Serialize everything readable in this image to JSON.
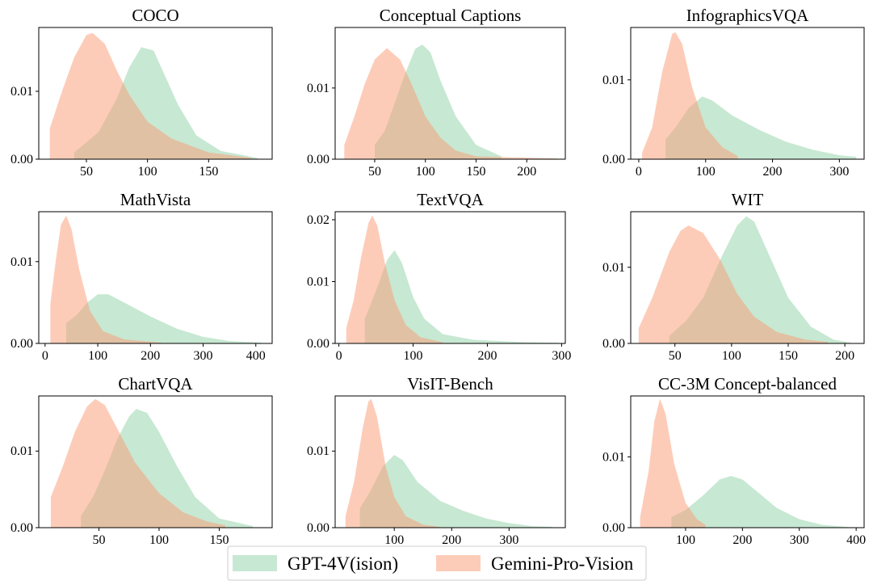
{
  "chart_data": [
    {
      "type": "area",
      "title": "COCO",
      "xlim": [
        11,
        202
      ],
      "xticks": [
        50,
        100,
        150
      ],
      "ylim": [
        0,
        0.0194
      ],
      "yticks": [
        {
          "value": 0,
          "label": "0.00"
        },
        {
          "value": 0.01,
          "label": "0.01"
        }
      ],
      "series": [
        {
          "color": "#8fd1a6",
          "x": [
            40,
            60,
            75,
            85,
            95,
            105,
            115,
            125,
            140,
            160,
            190
          ],
          "values": [
            0.001,
            0.004,
            0.009,
            0.0135,
            0.0165,
            0.016,
            0.012,
            0.008,
            0.0035,
            0.0012,
            0.0002
          ]
        },
        {
          "color": "#fc9a74",
          "x": [
            20,
            30,
            40,
            50,
            55,
            65,
            75,
            85,
            100,
            120,
            150,
            185
          ],
          "values": [
            0.0045,
            0.01,
            0.015,
            0.0183,
            0.0186,
            0.017,
            0.013,
            0.0095,
            0.0055,
            0.003,
            0.001,
            0.0002
          ]
        }
      ]
    },
    {
      "type": "area",
      "title": "Conceptual Captions",
      "xlim": [
        11,
        238
      ],
      "xticks": [
        50,
        100,
        150,
        200
      ],
      "ylim": [
        0,
        0.0185
      ],
      "yticks": [
        {
          "value": 0,
          "label": "0.00"
        },
        {
          "value": 0.01,
          "label": "0.01"
        }
      ],
      "series": [
        {
          "color": "#8fd1a6",
          "x": [
            50,
            60,
            70,
            80,
            90,
            97,
            105,
            115,
            130,
            150,
            175
          ],
          "values": [
            0.002,
            0.004,
            0.008,
            0.012,
            0.0155,
            0.0161,
            0.015,
            0.011,
            0.006,
            0.002,
            0.0004
          ]
        },
        {
          "color": "#fc9a74",
          "x": [
            20,
            30,
            40,
            50,
            62,
            75,
            85,
            100,
            115,
            130,
            150,
            230
          ],
          "values": [
            0.002,
            0.006,
            0.0105,
            0.014,
            0.0156,
            0.014,
            0.011,
            0.006,
            0.003,
            0.0012,
            0.0004,
            0.0001
          ]
        }
      ]
    },
    {
      "type": "area",
      "title": "InfographicsVQA",
      "xlim": [
        -12,
        337
      ],
      "xticks": [
        0,
        100,
        200,
        300
      ],
      "ylim": [
        0,
        0.0166
      ],
      "yticks": [
        {
          "value": 0,
          "label": "0.00"
        },
        {
          "value": 0.01,
          "label": "0.01"
        }
      ],
      "series": [
        {
          "color": "#8fd1a6",
          "x": [
            40,
            55,
            75,
            95,
            110,
            140,
            180,
            220,
            260,
            300,
            325
          ],
          "values": [
            0.0025,
            0.004,
            0.0065,
            0.0079,
            0.0074,
            0.0055,
            0.0037,
            0.0022,
            0.0012,
            0.0005,
            0.0003
          ]
        },
        {
          "color": "#fc9a74",
          "x": [
            5,
            20,
            35,
            50,
            55,
            65,
            80,
            100,
            125,
            148
          ],
          "values": [
            0.0008,
            0.004,
            0.011,
            0.0158,
            0.016,
            0.0145,
            0.009,
            0.004,
            0.0015,
            0.0004
          ]
        }
      ]
    },
    {
      "type": "area",
      "title": "MathVista",
      "xlim": [
        -12,
        431
      ],
      "xticks": [
        0,
        100,
        200,
        300,
        400
      ],
      "ylim": [
        0,
        0.0161
      ],
      "yticks": [
        {
          "value": 0,
          "label": "0.00"
        },
        {
          "value": 0.01,
          "label": "0.01"
        }
      ],
      "series": [
        {
          "color": "#8fd1a6",
          "x": [
            40,
            60,
            80,
            100,
            120,
            150,
            200,
            250,
            300,
            350,
            410
          ],
          "values": [
            0.0025,
            0.0035,
            0.005,
            0.006,
            0.006,
            0.005,
            0.0033,
            0.0018,
            0.0008,
            0.0003,
            0.0001
          ]
        },
        {
          "color": "#fc9a74",
          "x": [
            10,
            20,
            30,
            40,
            50,
            65,
            85,
            110,
            150,
            220
          ],
          "values": [
            0.0048,
            0.01,
            0.0145,
            0.0156,
            0.014,
            0.009,
            0.004,
            0.0015,
            0.0005,
            0.0001
          ]
        }
      ]
    },
    {
      "type": "area",
      "title": "TextVQA",
      "xlim": [
        -5,
        305
      ],
      "xticks": [
        0,
        100,
        200,
        300
      ],
      "ylim": [
        0,
        0.0213
      ],
      "yticks": [
        {
          "value": 0,
          "label": "0.00"
        },
        {
          "value": 0.01,
          "label": "0.01"
        },
        {
          "value": 0.02,
          "label": "0.02"
        }
      ],
      "series": [
        {
          "color": "#8fd1a6",
          "x": [
            35,
            50,
            65,
            75,
            85,
            100,
            115,
            140,
            180,
            250,
            295
          ],
          "values": [
            0.004,
            0.0085,
            0.0135,
            0.0151,
            0.013,
            0.0075,
            0.004,
            0.0015,
            0.0006,
            0.0002,
            0.0001
          ]
        },
        {
          "color": "#fc9a74",
          "x": [
            10,
            20,
            30,
            40,
            45,
            52,
            62,
            75,
            90,
            110,
            140
          ],
          "values": [
            0.0025,
            0.007,
            0.014,
            0.0195,
            0.0207,
            0.019,
            0.013,
            0.007,
            0.003,
            0.001,
            0.0002
          ]
        }
      ]
    },
    {
      "type": "area",
      "title": "WIT",
      "xlim": [
        11,
        217
      ],
      "xticks": [
        50,
        100,
        150,
        200
      ],
      "ylim": [
        0,
        0.0173
      ],
      "yticks": [
        {
          "value": 0,
          "label": "0.00"
        },
        {
          "value": 0.01,
          "label": "0.01"
        }
      ],
      "series": [
        {
          "color": "#8fd1a6",
          "x": [
            45,
            60,
            75,
            90,
            105,
            113,
            120,
            135,
            150,
            170,
            190,
            205
          ],
          "values": [
            0.001,
            0.003,
            0.006,
            0.011,
            0.0155,
            0.0167,
            0.016,
            0.011,
            0.006,
            0.0022,
            0.0005,
            0.0001
          ]
        },
        {
          "color": "#fc9a74",
          "x": [
            18,
            30,
            45,
            55,
            62,
            75,
            90,
            105,
            120,
            140,
            165,
            185
          ],
          "values": [
            0.002,
            0.006,
            0.012,
            0.0148,
            0.0155,
            0.0145,
            0.011,
            0.0065,
            0.0035,
            0.0015,
            0.0005,
            0.0002
          ]
        }
      ]
    },
    {
      "type": "area",
      "title": "ChartVQA",
      "xlim": [
        0,
        194
      ],
      "xticks": [
        50,
        100,
        150
      ],
      "ylim": [
        0,
        0.0172
      ],
      "yticks": [
        {
          "value": 0,
          "label": "0.00"
        },
        {
          "value": 0.01,
          "label": "0.01"
        }
      ],
      "series": [
        {
          "color": "#8fd1a6",
          "x": [
            35,
            45,
            55,
            65,
            75,
            81,
            90,
            100,
            115,
            130,
            150,
            178
          ],
          "values": [
            0.0015,
            0.004,
            0.0075,
            0.0115,
            0.0145,
            0.0155,
            0.015,
            0.0125,
            0.008,
            0.004,
            0.0012,
            0.0002
          ]
        },
        {
          "color": "#fc9a74",
          "x": [
            10,
            20,
            30,
            40,
            47,
            55,
            65,
            80,
            100,
            120,
            140,
            155
          ],
          "values": [
            0.004,
            0.008,
            0.0125,
            0.0158,
            0.0168,
            0.016,
            0.013,
            0.0085,
            0.0045,
            0.002,
            0.0008,
            0.0003
          ]
        }
      ]
    },
    {
      "type": "area",
      "title": "VisIT-Bench",
      "xlim": [
        -3,
        398
      ],
      "xticks": [
        100,
        200,
        300
      ],
      "ylim": [
        0,
        0.0172
      ],
      "yticks": [
        {
          "value": 0,
          "label": "0.00"
        },
        {
          "value": 0.01,
          "label": "0.01"
        }
      ],
      "series": [
        {
          "color": "#8fd1a6",
          "x": [
            40,
            60,
            80,
            100,
            115,
            140,
            180,
            220,
            260,
            300,
            340,
            375
          ],
          "values": [
            0.0025,
            0.005,
            0.008,
            0.0095,
            0.0088,
            0.006,
            0.0035,
            0.0022,
            0.0012,
            0.0006,
            0.0002,
            0.0001
          ]
        },
        {
          "color": "#fc9a74",
          "x": [
            15,
            30,
            45,
            55,
            60,
            70,
            85,
            100,
            120,
            150,
            180
          ],
          "values": [
            0.0015,
            0.006,
            0.013,
            0.0165,
            0.0168,
            0.0145,
            0.008,
            0.004,
            0.0015,
            0.0004,
            0.0001
          ]
        }
      ]
    },
    {
      "type": "area",
      "title": "CC-3M Concept-balanced",
      "xlim": [
        3.5,
        414
      ],
      "xticks": [
        100,
        200,
        300,
        400
      ],
      "ylim": [
        0,
        0.0186
      ],
      "yticks": [
        {
          "value": 0,
          "label": "0.00"
        },
        {
          "value": 0.01,
          "label": "0.01"
        }
      ],
      "series": [
        {
          "color": "#8fd1a6",
          "x": [
            75,
            100,
            130,
            160,
            180,
            200,
            230,
            260,
            300,
            340,
            385
          ],
          "values": [
            0.0015,
            0.0025,
            0.0045,
            0.0068,
            0.0073,
            0.0068,
            0.0048,
            0.0028,
            0.0012,
            0.0004,
            0.0001
          ]
        },
        {
          "color": "#fc9a74",
          "x": [
            20,
            35,
            45,
            55,
            65,
            80,
            100,
            120,
            135
          ],
          "values": [
            0.0015,
            0.008,
            0.015,
            0.0182,
            0.016,
            0.009,
            0.0035,
            0.0012,
            0.0004
          ]
        }
      ]
    }
  ],
  "alpha": 0.5,
  "legend": {
    "items": [
      {
        "name": "GPT-4V(ision)",
        "color": "#8fd1a6"
      },
      {
        "name": "Gemini-Pro-Vision",
        "color": "#fc9a74"
      }
    ]
  }
}
